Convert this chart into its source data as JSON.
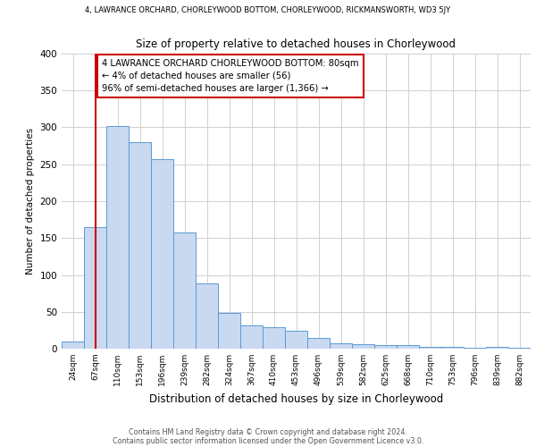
{
  "title_top": "4, LAWRANCE ORCHARD, CHORLEYWOOD BOTTOM, CHORLEYWOOD, RICKMANSWORTH, WD3 5JY",
  "title_main": "Size of property relative to detached houses in Chorleywood",
  "xlabel": "Distribution of detached houses by size in Chorleywood",
  "ylabel": "Number of detached properties",
  "bar_labels": [
    "24sqm",
    "67sqm",
    "110sqm",
    "153sqm",
    "196sqm",
    "239sqm",
    "282sqm",
    "324sqm",
    "367sqm",
    "410sqm",
    "453sqm",
    "496sqm",
    "539sqm",
    "582sqm",
    "625sqm",
    "668sqm",
    "710sqm",
    "753sqm",
    "796sqm",
    "839sqm",
    "882sqm"
  ],
  "bar_heights": [
    10,
    165,
    302,
    280,
    257,
    158,
    88,
    49,
    31,
    29,
    24,
    15,
    7,
    6,
    5,
    5,
    3,
    3,
    1,
    3,
    1
  ],
  "bar_color": "#c9d9f0",
  "bar_edge_color": "#5b9bd5",
  "ylim": [
    0,
    400
  ],
  "yticks": [
    0,
    50,
    100,
    150,
    200,
    250,
    300,
    350,
    400
  ],
  "vline_x_index": 1,
  "vline_color": "#cc0000",
  "annotation_title": "4 LAWRANCE ORCHARD CHORLEYWOOD BOTTOM: 80sqm",
  "annotation_line1": "← 4% of detached houses are smaller (56)",
  "annotation_line2": "96% of semi-detached houses are larger (1,366) →",
  "annotation_box_color": "#ffffff",
  "annotation_border_color": "#cc0000",
  "footer1": "Contains HM Land Registry data © Crown copyright and database right 2024.",
  "footer2": "Contains public sector information licensed under the Open Government Licence v3.0.",
  "bg_color": "#ffffff",
  "grid_color": "#d0d0d0"
}
